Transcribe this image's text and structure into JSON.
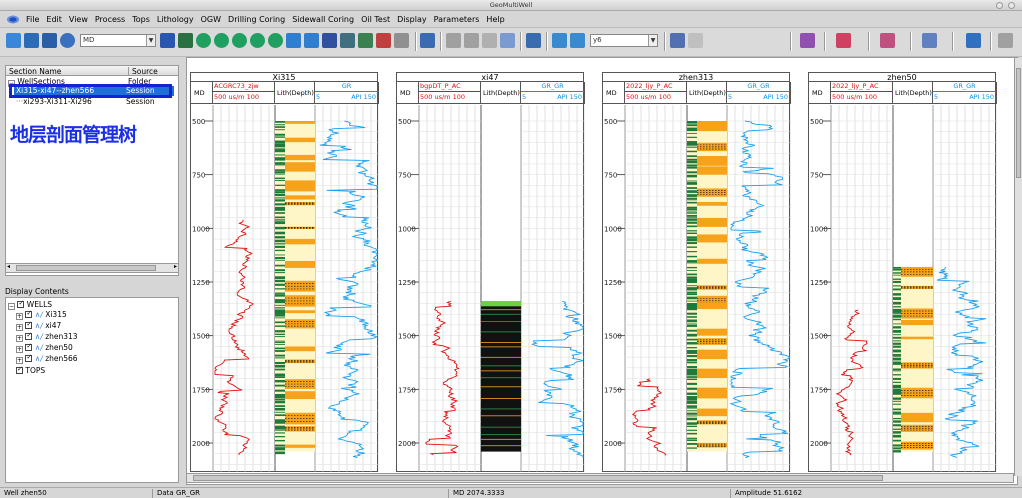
{
  "window": {
    "title": "GeoMultiWell"
  },
  "menu": [
    "File",
    "Edit",
    "View",
    "Process",
    "Tops",
    "Lithology",
    "OGW",
    "Drilling Coring",
    "Sidewall Coring",
    "Oil Test",
    "Display",
    "Parameters",
    "Help"
  ],
  "toolbar": {
    "md_combo": "MD",
    "y_combo": "y6"
  },
  "section_tree": {
    "headers": {
      "name": "Section Name",
      "source": "Source"
    },
    "root": {
      "label": "WellSections",
      "source": "Folder"
    },
    "items": [
      {
        "label": "Xi315-xi47--zhen566",
        "source": "Session",
        "selected": true
      },
      {
        "label": "xi293-Xi311-Xi296",
        "source": "Session",
        "selected": false
      }
    ]
  },
  "annotation": "地层剖面管理树",
  "display_contents": {
    "title": "Display Contents",
    "wells_label": "WELLS",
    "wells": [
      "Xi315",
      "xi47",
      "zhen313",
      "zhen50",
      "zhen566"
    ],
    "tops_label": "TOPS"
  },
  "wells": [
    {
      "name": "Xi315",
      "md_label": "MD",
      "ac_label": "ACGRC73_zjw",
      "ac_scale": "500 us/m 100",
      "lith_label": "Lith(Depth)",
      "gr_label": "GR",
      "gr_scale_left": "5",
      "gr_scale_unit": "API 150",
      "depths": [
        "500",
        "750",
        "1000",
        "1250",
        "1500",
        "1750",
        "2000"
      ]
    },
    {
      "name": "xi47",
      "md_label": "MD",
      "ac_label": "bgpDT_P_AC",
      "ac_scale": "500 us/m 100",
      "lith_label": "Lith(Depth)",
      "gr_label": "GR_GR",
      "gr_scale_left": "5",
      "gr_scale_unit": "API 150",
      "depths": [
        "500",
        "750",
        "1000",
        "1250",
        "1500",
        "1750",
        "2000"
      ]
    },
    {
      "name": "zhen313",
      "md_label": "MD",
      "ac_label": "2022_ljy_P_AC",
      "ac_scale": "500 us/m 100",
      "lith_label": "Lith(Depth)",
      "gr_label": "GR_GR",
      "gr_scale_left": "5",
      "gr_scale_unit": "API 150",
      "depths": [
        "500",
        "750",
        "1000",
        "1250",
        "1500",
        "1750",
        "2000"
      ]
    },
    {
      "name": "zhen50",
      "md_label": "MD",
      "ac_label": "2022_ljy_P_AC",
      "ac_scale": "500 us/m 100",
      "lith_label": "Lith(Depth)",
      "gr_label": "GR_GR",
      "gr_scale_left": "5",
      "gr_scale_unit": "API 150",
      "depths": [
        "500",
        "750",
        "1000",
        "1250",
        "1500",
        "1750",
        "2000"
      ]
    }
  ],
  "status": {
    "well": "Well zhen50",
    "data": "Data GR_GR",
    "md": "MD  2074.3333",
    "amplitude": "Amplitude 51.6162"
  },
  "colors": {
    "ac_curve": "#e01010",
    "gr_curve": "#1aa0f0",
    "sand": "#f6a21b",
    "mud": "#fff6c8",
    "shale": "#1f7a3a",
    "selection": "#1f6fd8",
    "annotation": "#1a2fe6"
  }
}
